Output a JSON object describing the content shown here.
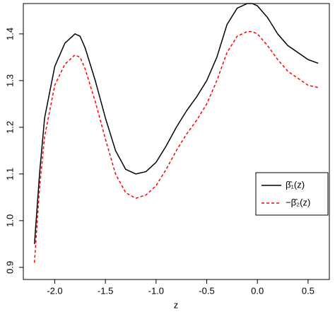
{
  "chart_data": {
    "type": "line",
    "x_label": "z",
    "x": [
      -2.2,
      -2.15,
      -2.1,
      -2.0,
      -1.9,
      -1.8,
      -1.75,
      -1.7,
      -1.6,
      -1.5,
      -1.4,
      -1.3,
      -1.2,
      -1.1,
      -1.0,
      -0.9,
      -0.8,
      -0.7,
      -0.6,
      -0.5,
      -0.4,
      -0.3,
      -0.2,
      -0.1,
      -0.05,
      0.0,
      0.1,
      0.2,
      0.3,
      0.4,
      0.5,
      0.6
    ],
    "series": [
      {
        "name": "β̂₁(z)",
        "color": "#000000",
        "dash": false,
        "values": [
          0.95,
          1.1,
          1.22,
          1.33,
          1.38,
          1.4,
          1.395,
          1.37,
          1.3,
          1.22,
          1.15,
          1.11,
          1.1,
          1.105,
          1.125,
          1.16,
          1.2,
          1.235,
          1.265,
          1.3,
          1.35,
          1.42,
          1.455,
          1.465,
          1.465,
          1.46,
          1.435,
          1.4,
          1.375,
          1.36,
          1.345,
          1.337
        ]
      },
      {
        "name": "−β̂₂(z)",
        "color": "#ff0000",
        "dash": true,
        "values": [
          0.91,
          1.07,
          1.18,
          1.29,
          1.335,
          1.355,
          1.35,
          1.325,
          1.255,
          1.175,
          1.1,
          1.06,
          1.048,
          1.055,
          1.075,
          1.11,
          1.15,
          1.185,
          1.215,
          1.25,
          1.3,
          1.36,
          1.395,
          1.405,
          1.405,
          1.4,
          1.375,
          1.345,
          1.32,
          1.305,
          1.29,
          1.285
        ]
      }
    ],
    "xlim": [
      -2.31,
      0.71
    ],
    "ylim": [
      0.874,
      1.465
    ],
    "xticks": [
      {
        "value": -2,
        "label": "-2.0"
      },
      {
        "value": -1.5,
        "label": "-1.5"
      },
      {
        "value": -1,
        "label": "-1.0"
      },
      {
        "value": -0.5,
        "label": "-0.5"
      },
      {
        "value": 0,
        "label": "0.0"
      },
      0.5
    ],
    "yticks": [
      0.9,
      {
        "value": 1,
        "label": "1.0"
      },
      1.1,
      1.2,
      1.3,
      1.4
    ],
    "legend": "center-right"
  }
}
